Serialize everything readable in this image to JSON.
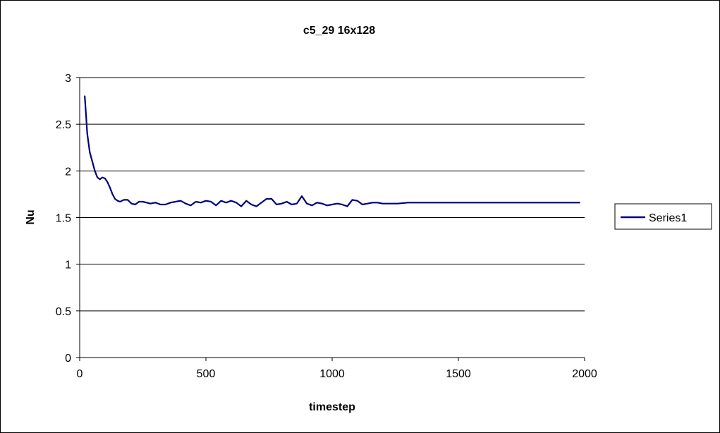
{
  "chart_data": {
    "type": "line",
    "title": "c5_29 16x128",
    "xlabel": "timestep",
    "ylabel": "Nu",
    "xlim": [
      0,
      2000
    ],
    "ylim": [
      0,
      3
    ],
    "xticks": [
      0,
      500,
      1000,
      1500,
      2000
    ],
    "xtick_labels": [
      "0",
      "500",
      "1000",
      "1500",
      "2000"
    ],
    "yticks": [
      0,
      0.5,
      1,
      1.5,
      2,
      2.5,
      3
    ],
    "ytick_labels": [
      "0",
      "0.5",
      "1",
      "1.5",
      "2",
      "2.5",
      "3"
    ],
    "grid": "horizontal",
    "legend_position": "right",
    "series": [
      {
        "name": "Series1",
        "color": "#000080",
        "x": [
          20,
          25,
          30,
          40,
          50,
          60,
          70,
          80,
          90,
          100,
          110,
          120,
          130,
          140,
          150,
          160,
          175,
          190,
          205,
          220,
          235,
          250,
          265,
          280,
          300,
          320,
          340,
          360,
          380,
          400,
          420,
          440,
          460,
          480,
          500,
          520,
          540,
          560,
          580,
          600,
          620,
          640,
          660,
          680,
          700,
          720,
          740,
          760,
          780,
          800,
          820,
          840,
          860,
          880,
          900,
          920,
          940,
          960,
          980,
          1000,
          1020,
          1040,
          1060,
          1080,
          1100,
          1120,
          1140,
          1160,
          1180,
          1200,
          1220,
          1260,
          1300,
          1400,
          1500,
          1600,
          1700,
          1800,
          1900,
          1980
        ],
        "y": [
          2.8,
          2.6,
          2.4,
          2.2,
          2.1,
          2.0,
          1.93,
          1.91,
          1.93,
          1.92,
          1.88,
          1.82,
          1.75,
          1.7,
          1.68,
          1.67,
          1.69,
          1.69,
          1.65,
          1.64,
          1.67,
          1.67,
          1.66,
          1.65,
          1.66,
          1.64,
          1.64,
          1.66,
          1.67,
          1.68,
          1.65,
          1.63,
          1.67,
          1.66,
          1.68,
          1.67,
          1.63,
          1.68,
          1.66,
          1.68,
          1.66,
          1.62,
          1.68,
          1.64,
          1.62,
          1.66,
          1.7,
          1.7,
          1.64,
          1.65,
          1.67,
          1.64,
          1.65,
          1.73,
          1.65,
          1.63,
          1.66,
          1.65,
          1.63,
          1.64,
          1.65,
          1.64,
          1.62,
          1.69,
          1.68,
          1.64,
          1.65,
          1.66,
          1.66,
          1.65,
          1.65,
          1.65,
          1.66,
          1.66,
          1.66,
          1.66,
          1.66,
          1.66,
          1.66,
          1.66
        ]
      }
    ]
  }
}
